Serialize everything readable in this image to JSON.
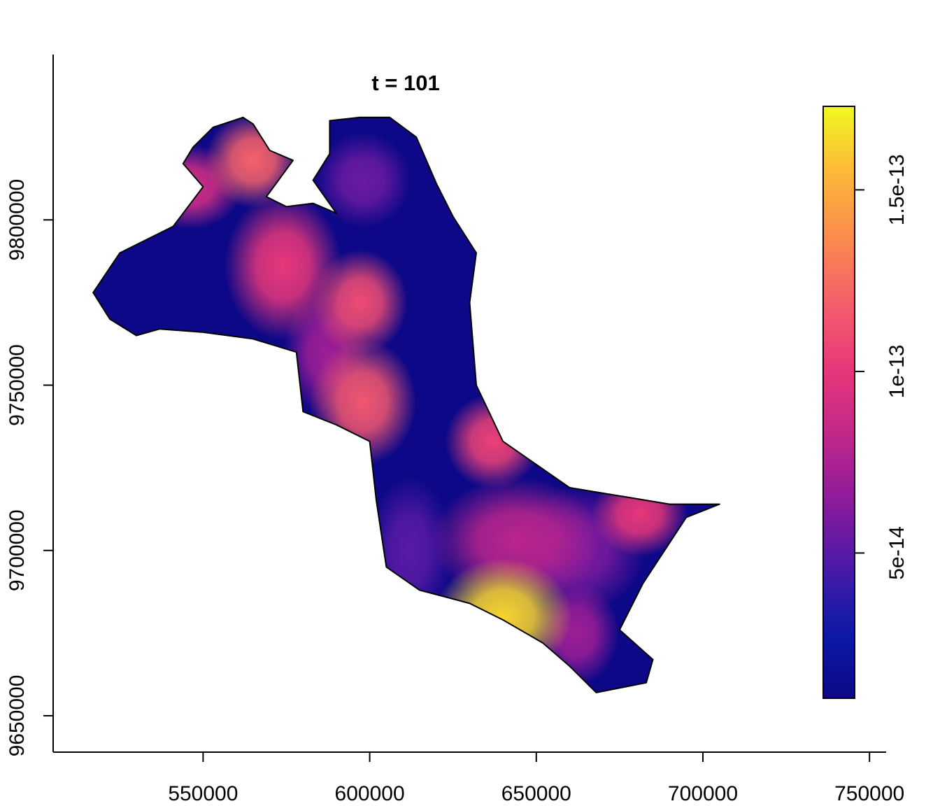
{
  "chart_data": {
    "type": "heatmap",
    "title": "t = 101",
    "xlabel": "",
    "ylabel": "",
    "xlim": [
      505000,
      755000
    ],
    "ylim": [
      9639000,
      9850000
    ],
    "x_ticks": [
      550000,
      600000,
      650000,
      700000,
      750000
    ],
    "y_ticks": [
      9650000,
      9700000,
      9750000,
      9800000
    ],
    "legend": {
      "placement": "right",
      "min": 1e-14,
      "max": 1.73e-13,
      "ticks": [
        {
          "value": 5e-14,
          "label": "5e-14"
        },
        {
          "value": 1e-13,
          "label": "1e-13"
        },
        {
          "value": 1.5e-13,
          "label": "1.5e-13"
        }
      ],
      "colors": [
        "#0d0887",
        "#0b1aa8",
        "#4a1aa8",
        "#8c1a9c",
        "#c1278a",
        "#e8377a",
        "#f45f6c",
        "#fb8b4f",
        "#fdb838",
        "#f0f921"
      ]
    },
    "background_value": 1e-14,
    "hotspots": [
      {
        "x": 565000,
        "y": 9818000,
        "sx": 9000,
        "sy": 9000,
        "value": 1.2e-13
      },
      {
        "x": 546000,
        "y": 9810000,
        "sx": 10000,
        "sy": 8000,
        "value": 9e-14
      },
      {
        "x": 574000,
        "y": 9786000,
        "sx": 11000,
        "sy": 14000,
        "value": 1e-13
      },
      {
        "x": 597000,
        "y": 9775000,
        "sx": 9000,
        "sy": 10000,
        "value": 1.1e-13
      },
      {
        "x": 598000,
        "y": 9812000,
        "sx": 9000,
        "sy": 9000,
        "value": 5.5e-14
      },
      {
        "x": 598000,
        "y": 9745000,
        "sx": 10000,
        "sy": 12000,
        "value": 1.15e-13
      },
      {
        "x": 587000,
        "y": 9760000,
        "sx": 8000,
        "sy": 12000,
        "value": 7e-14
      },
      {
        "x": 637000,
        "y": 9733000,
        "sx": 9000,
        "sy": 9000,
        "value": 1.05e-13
      },
      {
        "x": 640000,
        "y": 9680000,
        "sx": 13000,
        "sy": 11000,
        "value": 1.63e-13
      },
      {
        "x": 644000,
        "y": 9703000,
        "sx": 16000,
        "sy": 12000,
        "value": 8e-14
      },
      {
        "x": 681000,
        "y": 9711000,
        "sx": 9000,
        "sy": 8000,
        "value": 1e-13
      },
      {
        "x": 662000,
        "y": 9700000,
        "sx": 13000,
        "sy": 12000,
        "value": 6e-14
      },
      {
        "x": 612000,
        "y": 9700000,
        "sx": 8000,
        "sy": 14000,
        "value": 5e-14
      },
      {
        "x": 662000,
        "y": 9675000,
        "sx": 8000,
        "sy": 10000,
        "value": 7e-14
      }
    ],
    "region_boundary": [
      [
        517000,
        9778000
      ],
      [
        525000,
        9790000
      ],
      [
        541000,
        9798000
      ],
      [
        550000,
        9810000
      ],
      [
        544000,
        9817000
      ],
      [
        547000,
        9822000
      ],
      [
        553000,
        9828000
      ],
      [
        562000,
        9831000
      ],
      [
        565000,
        9829000
      ],
      [
        570000,
        9821000
      ],
      [
        577000,
        9818000
      ],
      [
        569000,
        9807000
      ],
      [
        575000,
        9804000
      ],
      [
        583000,
        9805000
      ],
      [
        590000,
        9802000
      ],
      [
        583000,
        9812000
      ],
      [
        588000,
        9820000
      ],
      [
        588000,
        9830000
      ],
      [
        597000,
        9831000
      ],
      [
        606000,
        9831000
      ],
      [
        614000,
        9825000
      ],
      [
        620000,
        9811000
      ],
      [
        625000,
        9801000
      ],
      [
        632000,
        9790000
      ],
      [
        630000,
        9775000
      ],
      [
        632000,
        9750000
      ],
      [
        640000,
        9733000
      ],
      [
        660000,
        9719000
      ],
      [
        690000,
        9714000
      ],
      [
        705000,
        9714000
      ],
      [
        695000,
        9710000
      ],
      [
        682000,
        9690000
      ],
      [
        675000,
        9676000
      ],
      [
        685000,
        9667000
      ],
      [
        683000,
        9660000
      ],
      [
        668000,
        9657000
      ],
      [
        660000,
        9665000
      ],
      [
        652000,
        9672000
      ],
      [
        640000,
        9679000
      ],
      [
        630000,
        9684000
      ],
      [
        615000,
        9688000
      ],
      [
        605000,
        9695000
      ],
      [
        602000,
        9715000
      ],
      [
        600000,
        9733000
      ],
      [
        590000,
        9738000
      ],
      [
        580000,
        9742000
      ],
      [
        578000,
        9760000
      ],
      [
        565000,
        9764000
      ],
      [
        550000,
        9766000
      ],
      [
        537000,
        9767000
      ],
      [
        530000,
        9765000
      ],
      [
        522000,
        9770000
      ]
    ]
  }
}
